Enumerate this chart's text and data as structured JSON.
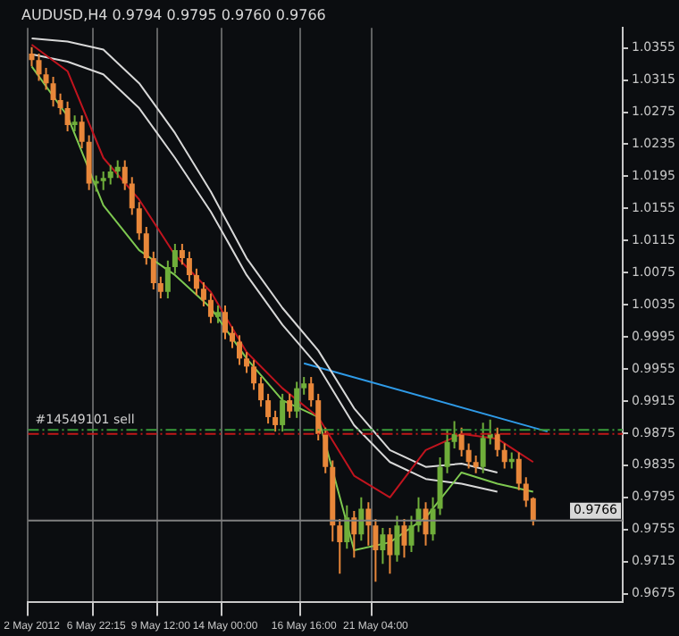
{
  "chart_data": {
    "type": "candlestick",
    "title": "AUDUSD,H4 0.9794 0.9795 0.9760 0.9766",
    "categories": [
      "2 May 2012",
      null,
      null,
      null,
      null,
      null,
      null,
      null,
      null,
      "6 May 22:15",
      null,
      null,
      null,
      null,
      null,
      null,
      null,
      null,
      "9 May 12:00",
      null,
      null,
      null,
      null,
      null,
      null,
      null,
      null,
      "14 May 00:00",
      null,
      null,
      null,
      null,
      null,
      null,
      null,
      null,
      null,
      null,
      "16 May 16:00",
      null,
      null,
      null,
      null,
      null,
      null,
      null,
      null,
      null,
      "21 May 04:00",
      null,
      null,
      null,
      null,
      null,
      null,
      null,
      null,
      null,
      null,
      null,
      null,
      null,
      null,
      null,
      null,
      null,
      null,
      null,
      null,
      null,
      null,
      null,
      null,
      null,
      null,
      null,
      null,
      null,
      null,
      null,
      null,
      null,
      null
    ],
    "colors": [
      "#e8873a",
      "#e8873a",
      "#e8873a",
      "#e8873a",
      "#e8873a",
      "#e8873a",
      "#6fae3a",
      "#e8873a",
      "#e8873a",
      "#6fae3a",
      "#6fae3a",
      "#6fae3a",
      "#6fae3a",
      "#e8873a",
      "#e8873a",
      "#e8873a",
      "#e8873a",
      "#e8873a",
      "#e8873a",
      "#6fae3a",
      "#6fae3a",
      "#e8873a",
      "#e8873a",
      "#e8873a",
      "#e8873a",
      "#e8873a",
      "#6fae3a",
      "#e8873a",
      "#e8873a",
      "#e8873a",
      "#e8873a",
      "#e8873a",
      "#e8873a",
      "#e8873a",
      "#e8873a",
      "#6fae3a",
      "#e8873a",
      "#6fae3a",
      "#6fae3a",
      "#e8873a",
      "#e8873a",
      "#e8873a",
      "#e8873a",
      "#e8873a",
      "#6fae3a",
      "#e8873a",
      "#6fae3a",
      "#e8873a",
      "#e8873a",
      "#6fae3a",
      "#e8873a",
      "#6fae3a",
      "#e8873a",
      "#6fae3a",
      "#6fae3a",
      "#e8873a",
      "#6fae3a",
      "#6fae3a",
      "#6fae3a",
      "#6fae3a",
      "#e8873a",
      "#e8873a",
      "#e8873a",
      "#6fae3a",
      "#6fae3a",
      "#e8873a",
      "#e8873a",
      "#6fae3a",
      "#e8873a",
      "#e8873a",
      "#e8873a",
      null,
      null,
      null,
      null,
      null,
      null,
      null,
      null,
      null,
      null,
      null,
      null
    ],
    "ohlc": [
      [
        1.0348,
        1.0356,
        1.0332,
        1.034
      ],
      [
        1.034,
        1.0348,
        1.0314,
        1.0322
      ],
      [
        1.0322,
        1.033,
        1.0303,
        1.0311
      ],
      [
        1.0311,
        1.0319,
        1.0282,
        1.029
      ],
      [
        1.029,
        1.0298,
        1.0272,
        1.028
      ],
      [
        1.028,
        1.0288,
        1.0251,
        1.0259
      ],
      [
        1.0259,
        1.0271,
        1.0251,
        1.0263
      ],
      [
        1.0263,
        1.0271,
        1.023,
        1.0238
      ],
      [
        1.0238,
        1.0246,
        1.0178,
        1.0186
      ],
      [
        1.0186,
        1.0196,
        1.0176,
        1.0189
      ],
      [
        1.0189,
        1.0201,
        1.0178,
        1.0193
      ],
      [
        1.0193,
        1.0209,
        1.0185,
        1.0201
      ],
      [
        1.0201,
        1.0215,
        1.0193,
        1.0207
      ],
      [
        1.0207,
        1.0215,
        1.0178,
        1.0186
      ],
      [
        1.0186,
        1.0194,
        1.0147,
        1.0155
      ],
      [
        1.0155,
        1.0163,
        1.0116,
        1.0124
      ],
      [
        1.0124,
        1.0132,
        1.0085,
        1.0093
      ],
      [
        1.0093,
        1.0101,
        1.0054,
        1.0062
      ],
      [
        1.0062,
        1.007,
        1.0043,
        1.0051
      ],
      [
        1.0051,
        1.009,
        1.0043,
        1.0082
      ],
      [
        1.0082,
        1.0111,
        1.0074,
        1.0103
      ],
      [
        1.0103,
        1.0111,
        1.0085,
        1.0093
      ],
      [
        1.0093,
        1.0101,
        1.0064,
        1.0072
      ],
      [
        1.0072,
        1.008,
        1.0047,
        1.0055
      ],
      [
        1.0055,
        1.0063,
        1.0033,
        1.0041
      ],
      [
        1.0041,
        1.0049,
        1.0012,
        1.002
      ],
      [
        1.002,
        1.0034,
        1.0012,
        1.0026
      ],
      [
        1.0026,
        1.0034,
        0.9992,
        1.0
      ],
      [
        1.0,
        1.0008,
        0.9981,
        0.9989
      ],
      [
        0.9989,
        0.9997,
        0.996,
        0.9968
      ],
      [
        0.9968,
        0.9976,
        0.995,
        0.9958
      ],
      [
        0.9958,
        0.9966,
        0.9929,
        0.9937
      ],
      [
        0.9937,
        0.9945,
        0.9908,
        0.9916
      ],
      [
        0.9916,
        0.9924,
        0.9887,
        0.9895
      ],
      [
        0.9895,
        0.9903,
        0.9877,
        0.9885
      ],
      [
        0.9885,
        0.9924,
        0.9877,
        0.9916
      ],
      [
        0.9916,
        0.9924,
        0.9894,
        0.9902
      ],
      [
        0.9902,
        0.9939,
        0.9894,
        0.9931
      ],
      [
        0.9931,
        0.9945,
        0.9923,
        0.9937
      ],
      [
        0.9937,
        0.9945,
        0.9908,
        0.9916
      ],
      [
        0.9916,
        0.9924,
        0.9866,
        0.9874
      ],
      [
        0.9874,
        0.9882,
        0.9825,
        0.9833
      ],
      [
        0.9833,
        0.9841,
        0.974,
        0.976
      ],
      [
        0.976,
        0.9768,
        0.97,
        0.9739
      ],
      [
        0.9739,
        0.9785,
        0.9731,
        0.977
      ],
      [
        0.977,
        0.9778,
        0.972,
        0.9749
      ],
      [
        0.9749,
        0.9795,
        0.9741,
        0.9781
      ],
      [
        0.9781,
        0.9789,
        0.9735,
        0.976
      ],
      [
        0.976,
        0.9768,
        0.969,
        0.9729
      ],
      [
        0.9729,
        0.9757,
        0.9712,
        0.9749
      ],
      [
        0.9749,
        0.9757,
        0.97,
        0.9723
      ],
      [
        0.9723,
        0.9772,
        0.9715,
        0.976
      ],
      [
        0.976,
        0.9768,
        0.972,
        0.9735
      ],
      [
        0.9735,
        0.9772,
        0.9727,
        0.976
      ],
      [
        0.976,
        0.9795,
        0.9752,
        0.9781
      ],
      [
        0.9781,
        0.9789,
        0.9735,
        0.9749
      ],
      [
        0.9749,
        0.9795,
        0.9741,
        0.9781
      ],
      [
        0.9781,
        0.9845,
        0.9773,
        0.9833
      ],
      [
        0.9833,
        0.988,
        0.9825,
        0.9864
      ],
      [
        0.9864,
        0.989,
        0.9856,
        0.9874
      ],
      [
        0.9874,
        0.9882,
        0.9846,
        0.9854
      ],
      [
        0.9854,
        0.9862,
        0.9831,
        0.9839
      ],
      [
        0.9839,
        0.9847,
        0.9825,
        0.9833
      ],
      [
        0.9833,
        0.9888,
        0.9825,
        0.9869
      ],
      [
        0.9869,
        0.9892,
        0.9861,
        0.9874
      ],
      [
        0.9874,
        0.9882,
        0.9846,
        0.9854
      ],
      [
        0.9854,
        0.9862,
        0.9831,
        0.9839
      ],
      [
        0.9839,
        0.9851,
        0.9831,
        0.9843
      ],
      [
        0.9843,
        0.9851,
        0.9804,
        0.9812
      ],
      [
        0.9812,
        0.982,
        0.9783,
        0.9791
      ],
      [
        0.9794,
        0.9795,
        0.976,
        0.9766
      ],
      null,
      null,
      null,
      null,
      null,
      null,
      null,
      null,
      null,
      null,
      null,
      null
    ],
    "series": [
      {
        "type": "line",
        "color": "#c0141e",
        "values": [
          1.0359,
          null,
          null,
          null,
          null,
          1.0326,
          null,
          null,
          null,
          null,
          1.0218,
          null,
          null,
          null,
          null,
          1.0166,
          null,
          null,
          null,
          null,
          1.0097,
          null,
          null,
          null,
          null,
          1.0051,
          null,
          null,
          null,
          null,
          0.9976,
          null,
          null,
          null,
          null,
          0.9931,
          null,
          null,
          null,
          null,
          0.9895,
          null,
          null,
          null,
          null,
          0.9822,
          null,
          null,
          null,
          null,
          0.9795,
          null,
          null,
          null,
          null,
          0.9854,
          null,
          null,
          null,
          null,
          0.9874,
          null,
          null,
          null,
          null,
          0.9868,
          null,
          null,
          null,
          null,
          0.9839,
          null,
          null,
          null,
          null,
          null,
          null,
          null,
          null,
          null,
          null,
          null,
          null
        ]
      },
      {
        "type": "line",
        "color": "#7ec850",
        "values": [
          1.0332,
          null,
          null,
          null,
          null,
          1.027,
          null,
          null,
          null,
          null,
          1.0159,
          null,
          null,
          null,
          null,
          1.0103,
          null,
          null,
          null,
          null,
          1.0072,
          null,
          null,
          null,
          null,
          1.0031,
          null,
          null,
          null,
          null,
          0.9968,
          null,
          null,
          null,
          null,
          0.9916,
          null,
          null,
          null,
          null,
          0.9895,
          null,
          null,
          null,
          null,
          0.9729,
          null,
          null,
          null,
          null,
          0.9739,
          null,
          null,
          null,
          null,
          0.977,
          null,
          null,
          null,
          null,
          0.9826,
          null,
          null,
          null,
          null,
          0.9812,
          null,
          null,
          null,
          null,
          0.9802,
          null,
          null,
          null,
          null,
          null,
          null,
          null,
          null,
          null,
          null,
          null,
          null
        ]
      },
      {
        "type": "line",
        "color": "#d8d8d8",
        "values": [
          1.0367,
          null,
          null,
          null,
          null,
          1.0363,
          null,
          null,
          null,
          null,
          1.0353,
          null,
          null,
          null,
          null,
          1.0311,
          null,
          null,
          null,
          null,
          1.0249,
          null,
          null,
          null,
          null,
          1.0176,
          null,
          null,
          null,
          null,
          1.0093,
          null,
          null,
          null,
          null,
          1.0031,
          null,
          null,
          null,
          null,
          0.9978,
          null,
          null,
          null,
          null,
          0.9906,
          null,
          null,
          null,
          null,
          0.9854,
          null,
          null,
          null,
          null,
          0.9833,
          null,
          null,
          null,
          null,
          0.9837,
          null,
          null,
          null,
          null,
          0.9826,
          null,
          null,
          null,
          null,
          null,
          null,
          null,
          null,
          null,
          null,
          null,
          null,
          null,
          null,
          null,
          null,
          null
        ]
      },
      {
        "type": "line",
        "color": "#d8d8d8",
        "values": [
          1.0347,
          null,
          null,
          null,
          null,
          1.0338,
          null,
          null,
          null,
          null,
          1.0322,
          null,
          null,
          null,
          null,
          1.028,
          null,
          null,
          null,
          null,
          1.0218,
          null,
          null,
          null,
          null,
          1.0151,
          null,
          null,
          null,
          null,
          1.0072,
          null,
          null,
          null,
          null,
          1.001,
          null,
          null,
          null,
          null,
          0.9958,
          null,
          null,
          null,
          null,
          0.9885,
          null,
          null,
          null,
          null,
          0.9839,
          null,
          null,
          null,
          null,
          0.9818,
          null,
          null,
          null,
          null,
          0.9812,
          null,
          null,
          null,
          null,
          0.9802,
          null,
          null,
          null,
          null,
          null,
          null,
          null,
          null,
          null,
          null,
          null,
          null,
          null,
          null,
          null,
          null,
          null
        ]
      },
      {
        "type": "line",
        "color": "#2f9be8",
        "values": [
          null,
          null,
          null,
          null,
          null,
          null,
          null,
          null,
          null,
          null,
          null,
          null,
          null,
          null,
          null,
          null,
          null,
          null,
          null,
          null,
          null,
          null,
          null,
          null,
          null,
          null,
          null,
          null,
          null,
          null,
          null,
          null,
          null,
          null,
          null,
          null,
          null,
          null,
          0.9962,
          null,
          null,
          null,
          null,
          null,
          null,
          null,
          null,
          null,
          null,
          null,
          null,
          null,
          null,
          null,
          null,
          null,
          null,
          null,
          null,
          null,
          null,
          null,
          null,
          null,
          null,
          null,
          null,
          null,
          null,
          null,
          null,
          null,
          0.9877,
          null,
          null,
          null,
          null,
          null,
          null,
          null,
          null,
          null,
          null
        ]
      }
    ],
    "ylim": [
      0.9665,
      1.038
    ],
    "yticks": [
      0.9675,
      0.9715,
      0.9755,
      0.9795,
      0.9835,
      0.9875,
      0.9915,
      0.9955,
      0.9995,
      1.0035,
      1.0075,
      1.0115,
      1.0155,
      1.0195,
      1.0235,
      1.0275,
      1.0315,
      1.0355
    ],
    "grid": "x",
    "legend": false,
    "ref_lines": [
      {
        "axis": "y",
        "value": 0.9879,
        "label": "#14549101 sell",
        "color": "#3a9a3a",
        "line_style": "dashed"
      },
      {
        "axis": "y",
        "value": 0.9874,
        "color": "#c01818",
        "line_style": "dashed"
      },
      {
        "axis": "y",
        "value": 0.9766,
        "label": "0.9766",
        "color": "#808080",
        "line_style": "solid"
      }
    ]
  }
}
